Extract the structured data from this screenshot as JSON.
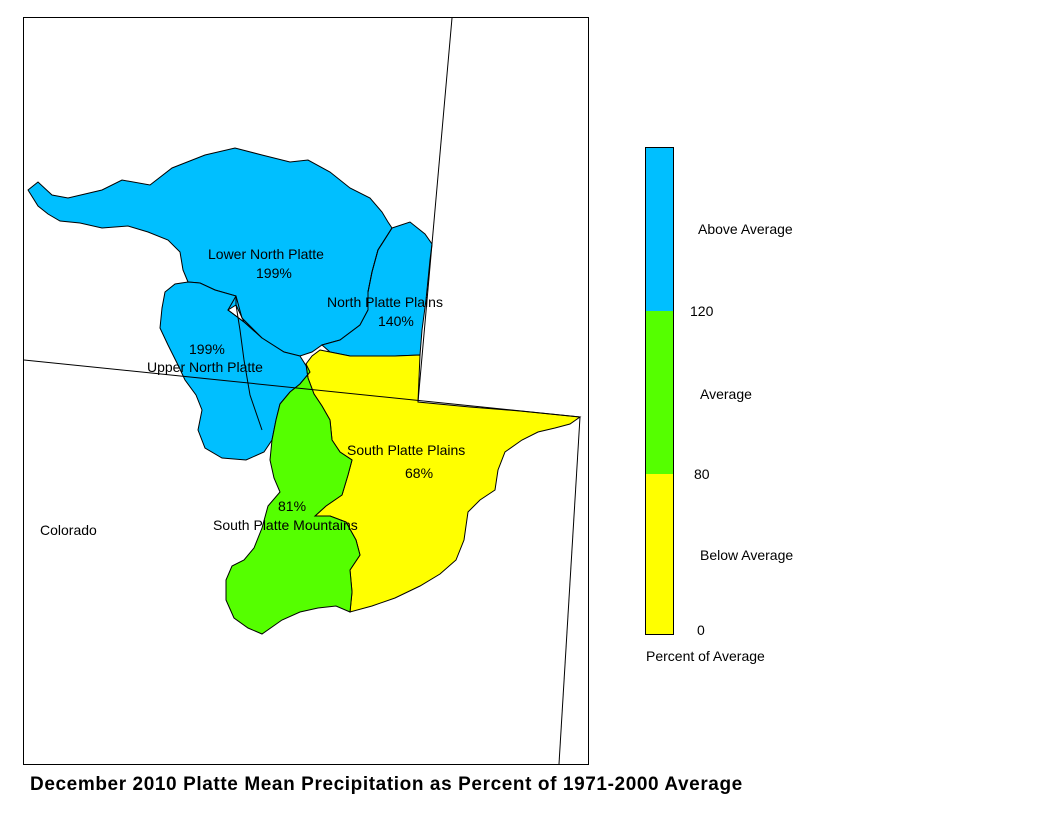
{
  "map": {
    "state_label": "Colorado",
    "basins": [
      {
        "name": "Lower North Platte",
        "value": "199%"
      },
      {
        "name": "North Platte Plains",
        "value": "140%"
      },
      {
        "name": "Upper North Platte",
        "value": "199%"
      },
      {
        "name": "South Platte Plains",
        "value": "68%"
      },
      {
        "name": "South Platte Mountains",
        "value": "81%"
      }
    ]
  },
  "legend": {
    "title": "Percent of Average",
    "categories": [
      {
        "label": "Above Average",
        "color": "#00BFFF"
      },
      {
        "label": "Average",
        "color": "#55FF00"
      },
      {
        "label": "Below Average",
        "color": "#FFFF00"
      }
    ],
    "ticks": [
      "120",
      "80",
      "0"
    ]
  },
  "title": "December 2010 Platte Mean Precipitation as Percent of 1971-2000 Average"
}
